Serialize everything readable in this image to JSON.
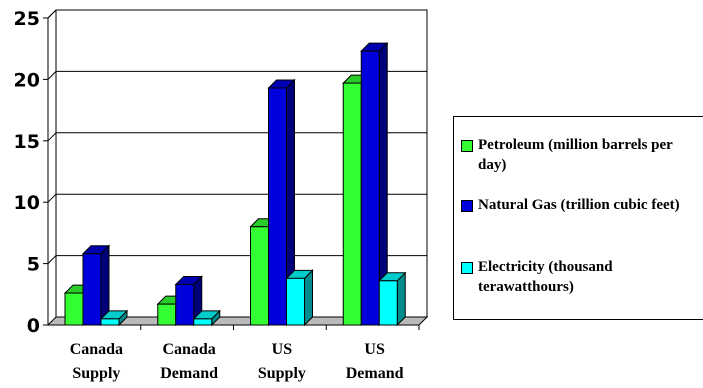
{
  "chart_data": {
    "type": "bar",
    "categories": [
      "Canada Supply",
      "Canada Demand",
      "US Supply",
      "US Demand"
    ],
    "category_lines": [
      [
        "Canada",
        "Supply"
      ],
      [
        "Canada",
        "Demand"
      ],
      [
        "US",
        "Supply"
      ],
      [
        "US",
        "Demand"
      ]
    ],
    "series": [
      {
        "name": "Petroleum (million barrels per day)",
        "values": [
          2.6,
          1.7,
          8.0,
          19.7
        ],
        "color": "#33ff33"
      },
      {
        "name": "Natural Gas (trillion cubic feet)",
        "values": [
          5.8,
          3.3,
          19.3,
          22.3
        ],
        "color": "#0000dd"
      },
      {
        "name": "Electricity (thousand terawatthours)",
        "values": [
          0.5,
          0.5,
          3.8,
          3.6
        ],
        "color": "#00ffff"
      }
    ],
    "ylim": [
      0,
      25
    ],
    "yticks": [
      0,
      5,
      10,
      15,
      20,
      25
    ],
    "grid": true,
    "three_d": true,
    "legend_position": "right",
    "title": "",
    "xlabel": "",
    "ylabel": ""
  }
}
